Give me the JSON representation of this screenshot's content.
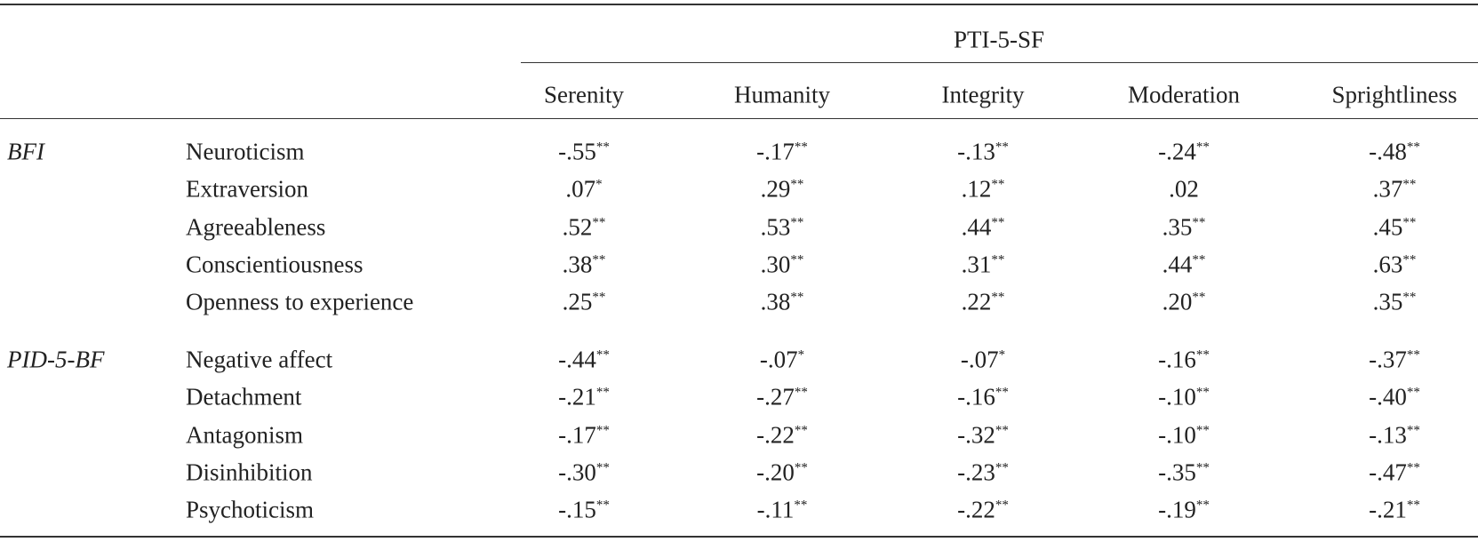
{
  "table": {
    "spanner": "PTI-5-SF",
    "columns": [
      "Serenity",
      "Humanity",
      "Integrity",
      "Moderation",
      "Sprightliness"
    ],
    "groups": [
      {
        "label": "BFI",
        "rows": [
          {
            "label": "Neuroticism",
            "cells": [
              {
                "value": "-.55",
                "sig": "**"
              },
              {
                "value": "-.17",
                "sig": "**"
              },
              {
                "value": "-.13",
                "sig": "**"
              },
              {
                "value": "-.24",
                "sig": "**"
              },
              {
                "value": "-.48",
                "sig": "**"
              }
            ]
          },
          {
            "label": "Extraversion",
            "cells": [
              {
                "value": ".07",
                "sig": "*"
              },
              {
                "value": ".29",
                "sig": "**"
              },
              {
                "value": ".12",
                "sig": "**"
              },
              {
                "value": ".02"
              },
              {
                "value": ".37",
                "sig": "**"
              }
            ]
          },
          {
            "label": "Agreeableness",
            "cells": [
              {
                "value": ".52",
                "sig": "**"
              },
              {
                "value": ".53",
                "sig": "**"
              },
              {
                "value": ".44",
                "sig": "**"
              },
              {
                "value": ".35",
                "sig": "**"
              },
              {
                "value": ".45",
                "sig": "**"
              }
            ]
          },
          {
            "label": "Conscientiousness",
            "cells": [
              {
                "value": ".38",
                "sig": "**"
              },
              {
                "value": ".30",
                "sig": "**"
              },
              {
                "value": ".31",
                "sig": "**"
              },
              {
                "value": ".44",
                "sig": "**"
              },
              {
                "value": ".63",
                "sig": "**"
              }
            ]
          },
          {
            "label": "Openness to experience",
            "cells": [
              {
                "value": ".25",
                "sig": "**"
              },
              {
                "value": ".38",
                "sig": "**"
              },
              {
                "value": ".22",
                "sig": "**"
              },
              {
                "value": ".20",
                "sig": "**"
              },
              {
                "value": ".35",
                "sig": "**"
              }
            ]
          }
        ]
      },
      {
        "label": "PID-5-BF",
        "rows": [
          {
            "label": "Negative affect",
            "cells": [
              {
                "value": "-.44",
                "sig": "**"
              },
              {
                "value": "-.07",
                "sig": "*"
              },
              {
                "value": "-.07",
                "sig": "*"
              },
              {
                "value": "-.16",
                "sig": "**"
              },
              {
                "value": "-.37",
                "sig": "**"
              }
            ]
          },
          {
            "label": "Detachment",
            "cells": [
              {
                "value": "-.21",
                "sig": "**"
              },
              {
                "value": "-.27",
                "sig": "**"
              },
              {
                "value": "-.16",
                "sig": "**"
              },
              {
                "value": "-.10",
                "sig": "**"
              },
              {
                "value": "-.40",
                "sig": "**"
              }
            ]
          },
          {
            "label": "Antagonism",
            "cells": [
              {
                "value": "-.17",
                "sig": "**"
              },
              {
                "value": "-.22",
                "sig": "**"
              },
              {
                "value": "-.32",
                "sig": "**"
              },
              {
                "value": "-.10",
                "sig": "**"
              },
              {
                "value": "-.13",
                "sig": "**"
              }
            ]
          },
          {
            "label": "Disinhibition",
            "cells": [
              {
                "value": "-.30",
                "sig": "**"
              },
              {
                "value": "-.20",
                "sig": "**"
              },
              {
                "value": "-.23",
                "sig": "**"
              },
              {
                "value": "-.35",
                "sig": "**"
              },
              {
                "value": "-.47",
                "sig": "**"
              }
            ]
          },
          {
            "label": "Psychoticism",
            "cells": [
              {
                "value": "-.15",
                "sig": "**"
              },
              {
                "value": "-.11",
                "sig": "**"
              },
              {
                "value": "-.22",
                "sig": "**"
              },
              {
                "value": "-.19",
                "sig": "**"
              },
              {
                "value": "-.21",
                "sig": "**"
              }
            ]
          }
        ]
      }
    ]
  }
}
